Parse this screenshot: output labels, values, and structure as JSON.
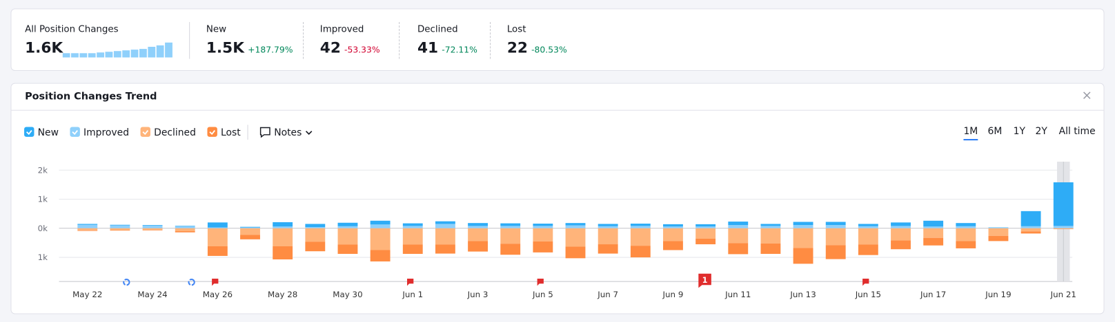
{
  "summary": {
    "all": {
      "label": "All Position Changes",
      "value": "1.6K",
      "sparkline": [
        6,
        6,
        6,
        6,
        7,
        8,
        9,
        10,
        11,
        12,
        15,
        17,
        21
      ]
    },
    "cards": [
      {
        "label": "New",
        "value": "1.5K",
        "change": "+187.79%",
        "trend": "up"
      },
      {
        "label": "Improved",
        "value": "42",
        "change": "-53.33%",
        "trend": "down"
      },
      {
        "label": "Declined",
        "value": "41",
        "change": "-72.11%",
        "trend": "up"
      },
      {
        "label": "Lost",
        "value": "22",
        "change": "-80.53%",
        "trend": "up"
      }
    ]
  },
  "panel": {
    "title": "Position Changes Trend",
    "notes": "Notes",
    "ranges": [
      "1M",
      "6M",
      "1Y",
      "2Y",
      "All time"
    ],
    "active_range": 0,
    "notes_badge": "1"
  },
  "chart_data": {
    "type": "bar",
    "stacked": true,
    "categories": [
      "May 22",
      null,
      "May 24",
      null,
      "May 26",
      null,
      "May 28",
      null,
      "May 30",
      null,
      "Jun 1",
      null,
      "Jun 3",
      null,
      "Jun 5",
      null,
      "Jun 7",
      null,
      "Jun 9",
      null,
      "Jun 11",
      null,
      "Jun 13",
      null,
      "Jun 15",
      null,
      "Jun 17",
      null,
      "Jun 19",
      null,
      "Jun 21"
    ],
    "series": [
      {
        "name": "Improved",
        "color": "#8fd0fb",
        "values": [
          120,
          100,
          90,
          80,
          30,
          30,
          60,
          40,
          70,
          130,
          80,
          150,
          80,
          80,
          80,
          100,
          70,
          80,
          60,
          60,
          110,
          80,
          110,
          110,
          70,
          80,
          60,
          70,
          20,
          70,
          80
        ]
      },
      {
        "name": "New",
        "color": "#2eacf6",
        "values": [
          30,
          20,
          20,
          10,
          170,
          20,
          150,
          110,
          120,
          130,
          90,
          90,
          100,
          90,
          80,
          80,
          80,
          80,
          80,
          80,
          120,
          70,
          110,
          110,
          80,
          120,
          200,
          110,
          10,
          520,
          1500
        ]
      },
      {
        "name": "Declined",
        "color": "#ffb47a",
        "values": [
          -70,
          -60,
          -50,
          -100,
          -620,
          -230,
          -620,
          -460,
          -560,
          -750,
          -560,
          -560,
          -440,
          -530,
          -450,
          -630,
          -550,
          -600,
          -440,
          -360,
          -510,
          -520,
          -680,
          -580,
          -560,
          -420,
          -330,
          -440,
          -260,
          -110,
          -20
        ]
      },
      {
        "name": "Lost",
        "color": "#ff8c42",
        "values": [
          -20,
          -20,
          -20,
          -40,
          -330,
          -150,
          -450,
          -330,
          -320,
          -390,
          -320,
          -310,
          -360,
          -380,
          -380,
          -400,
          -320,
          -400,
          -310,
          -190,
          -380,
          -360,
          -540,
          -480,
          -360,
          -300,
          -260,
          -250,
          -180,
          -70,
          -10
        ]
      }
    ],
    "legend_order": [
      1,
      0,
      2,
      3
    ],
    "ylim": [
      -1830,
      2290
    ],
    "yticks": [
      {
        "value": 2000,
        "label": "2k"
      },
      {
        "value": 1000,
        "label": "1k"
      },
      {
        "value": 0,
        "label": "0k"
      },
      {
        "value": -1000,
        "label": "1k"
      }
    ],
    "grid": true
  }
}
